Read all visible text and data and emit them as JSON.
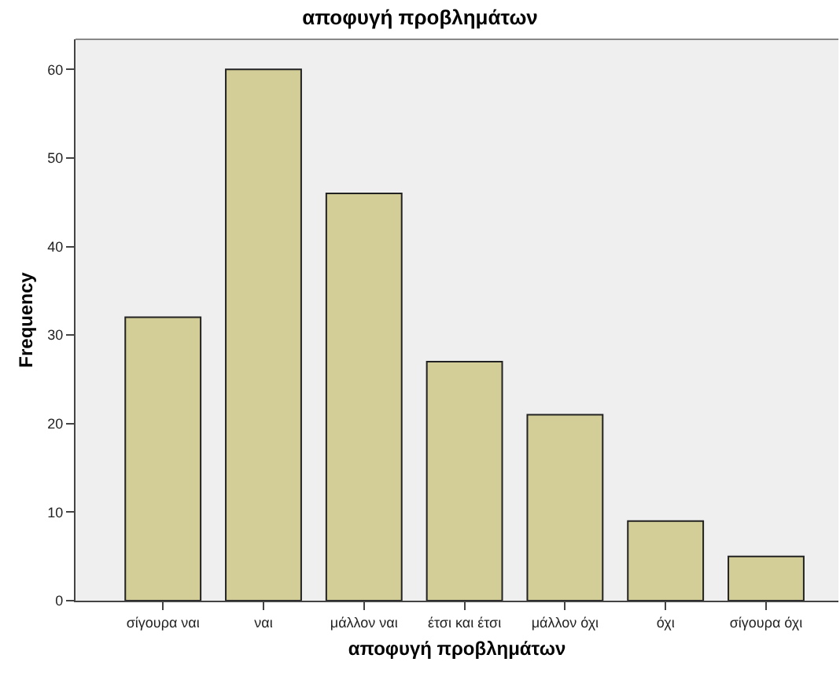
{
  "chart_data": {
    "type": "bar",
    "title": "αποφυγή προβλημάτων",
    "xlabel": "αποφυγή προβλημάτων",
    "ylabel": "Frequency",
    "categories": [
      "σίγουρα ναι",
      "ναι",
      "μάλλον ναι",
      "έτσι και έτσι",
      "μάλλον όχι",
      "όχι",
      "σίγουρα όχι"
    ],
    "values": [
      32,
      60,
      46,
      27,
      21,
      9,
      5
    ],
    "color": "#d3ce98",
    "ylim": [
      0,
      63.4
    ],
    "yticks": [
      0,
      10,
      20,
      30,
      40,
      50,
      60
    ],
    "grid": false
  }
}
